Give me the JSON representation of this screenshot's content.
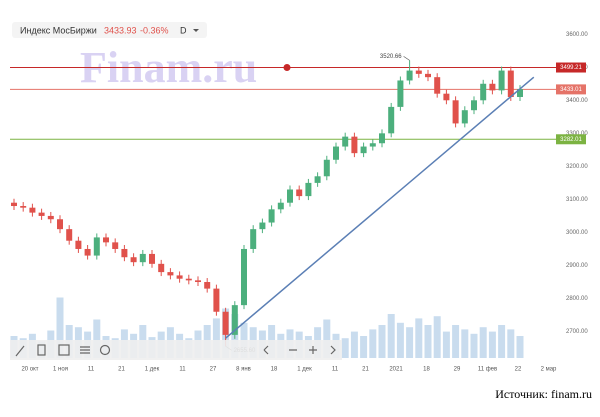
{
  "header": {
    "name": "Индекс МосБиржи",
    "price": "3433.93",
    "change": "-0.36%",
    "period": "D"
  },
  "watermark": "Finam.ru",
  "source": "Источник: finam.ru",
  "chart_data": {
    "type": "candlestick",
    "x_labels": [
      "20 окт",
      "1 ноя",
      "11",
      "21",
      "1 дек",
      "11",
      "27",
      "8 янв",
      "18",
      "1 дек",
      "11",
      "21",
      "2021",
      "18",
      "29",
      "11 фев",
      "22",
      "2 мар"
    ],
    "open": [
      3090,
      3080,
      3075,
      3060,
      3050,
      3040,
      3010,
      2975,
      2950,
      2930,
      2985,
      2970,
      2950,
      2925,
      2910,
      2935,
      2905,
      2880,
      2870,
      2860,
      2855,
      2850,
      2830,
      2760,
      2690,
      2780,
      2950,
      3010,
      3030,
      3070,
      3090,
      3130,
      3110,
      3150,
      3170,
      3220,
      3260,
      3290,
      3240,
      3260,
      3270,
      3300,
      3380,
      3460,
      3490,
      3480,
      3470,
      3420,
      3400,
      3330,
      3370,
      3400,
      3450,
      3430,
      3490,
      3410
    ],
    "high": [
      3102,
      3092,
      3087,
      3072,
      3062,
      3052,
      3022,
      2987,
      2962,
      2997,
      2997,
      2982,
      2962,
      2937,
      2947,
      2947,
      2917,
      2892,
      2882,
      2872,
      2867,
      2862,
      2842,
      2772,
      2792,
      2962,
      3022,
      3042,
      3082,
      3102,
      3142,
      3142,
      3162,
      3182,
      3232,
      3272,
      3302,
      3302,
      3272,
      3282,
      3312,
      3392,
      3472,
      3520.66,
      3502,
      3492,
      3482,
      3432,
      3412,
      3382,
      3412,
      3462,
      3462,
      3502,
      3502,
      3446
    ],
    "low": [
      3068,
      3063,
      3048,
      3038,
      3028,
      2998,
      2963,
      2938,
      2918,
      2918,
      2958,
      2938,
      2913,
      2898,
      2898,
      2893,
      2868,
      2858,
      2848,
      2843,
      2838,
      2818,
      2748,
      2655.6,
      2678,
      2768,
      2938,
      2998,
      3018,
      3058,
      3078,
      3098,
      3098,
      3138,
      3158,
      3208,
      3248,
      3228,
      3228,
      3248,
      3258,
      3288,
      3368,
      3448,
      3468,
      3458,
      3408,
      3388,
      3318,
      3318,
      3358,
      3388,
      3418,
      3418,
      3398,
      3398
    ],
    "close": [
      3080,
      3075,
      3060,
      3050,
      3040,
      3010,
      2975,
      2950,
      2930,
      2985,
      2970,
      2950,
      2925,
      2910,
      2935,
      2905,
      2880,
      2870,
      2860,
      2855,
      2850,
      2830,
      2760,
      2690,
      2780,
      2950,
      3010,
      3030,
      3070,
      3090,
      3130,
      3110,
      3150,
      3170,
      3220,
      3260,
      3290,
      3240,
      3260,
      3270,
      3300,
      3380,
      3460,
      3490,
      3480,
      3470,
      3420,
      3400,
      3330,
      3370,
      3400,
      3450,
      3430,
      3490,
      3410,
      3433.93
    ],
    "volume": [
      20,
      18,
      22,
      15,
      25,
      55,
      30,
      28,
      24,
      35,
      20,
      18,
      26,
      22,
      30,
      19,
      24,
      28,
      22,
      18,
      25,
      30,
      36,
      45,
      40,
      32,
      28,
      25,
      30,
      22,
      26,
      24,
      20,
      28,
      35,
      22,
      18,
      24,
      20,
      26,
      30,
      40,
      32,
      28,
      36,
      30,
      38,
      24,
      30,
      26,
      22,
      28,
      24,
      30,
      26,
      20
    ],
    "volume_lim": [
      0,
      100
    ],
    "ylim": [
      2620,
      3640
    ],
    "yticks": [
      {
        "value": 2700,
        "label": "2700.00"
      },
      {
        "value": 2800,
        "label": "2800.00"
      },
      {
        "value": 2900,
        "label": "2900.00"
      },
      {
        "value": 3000,
        "label": "3000.00"
      },
      {
        "value": 3100,
        "label": "3100.00"
      },
      {
        "value": 3200,
        "label": "3200.00"
      },
      {
        "value": 3300,
        "label": "3300.00"
      },
      {
        "value": 3400,
        "label": "3400.00"
      },
      {
        "value": 3500,
        "label": "3500.00"
      },
      {
        "value": 3600,
        "label": "3600.00"
      }
    ],
    "levels": [
      {
        "value": 3499.21,
        "color": "#c62828"
      },
      {
        "value": 3433.01,
        "color": "#e57368"
      },
      {
        "value": 3282.01,
        "color": "#7cb342"
      }
    ],
    "annotations": [
      {
        "value": 3520.66,
        "label": "3520.66"
      },
      {
        "value": 2655.6,
        "label": "2655.60"
      }
    ],
    "trendline": {
      "from": 2680,
      "to": 3470
    },
    "up_color": "#4caf7d",
    "down_color": "#e0514b",
    "volume_color": "#c9dcee"
  }
}
